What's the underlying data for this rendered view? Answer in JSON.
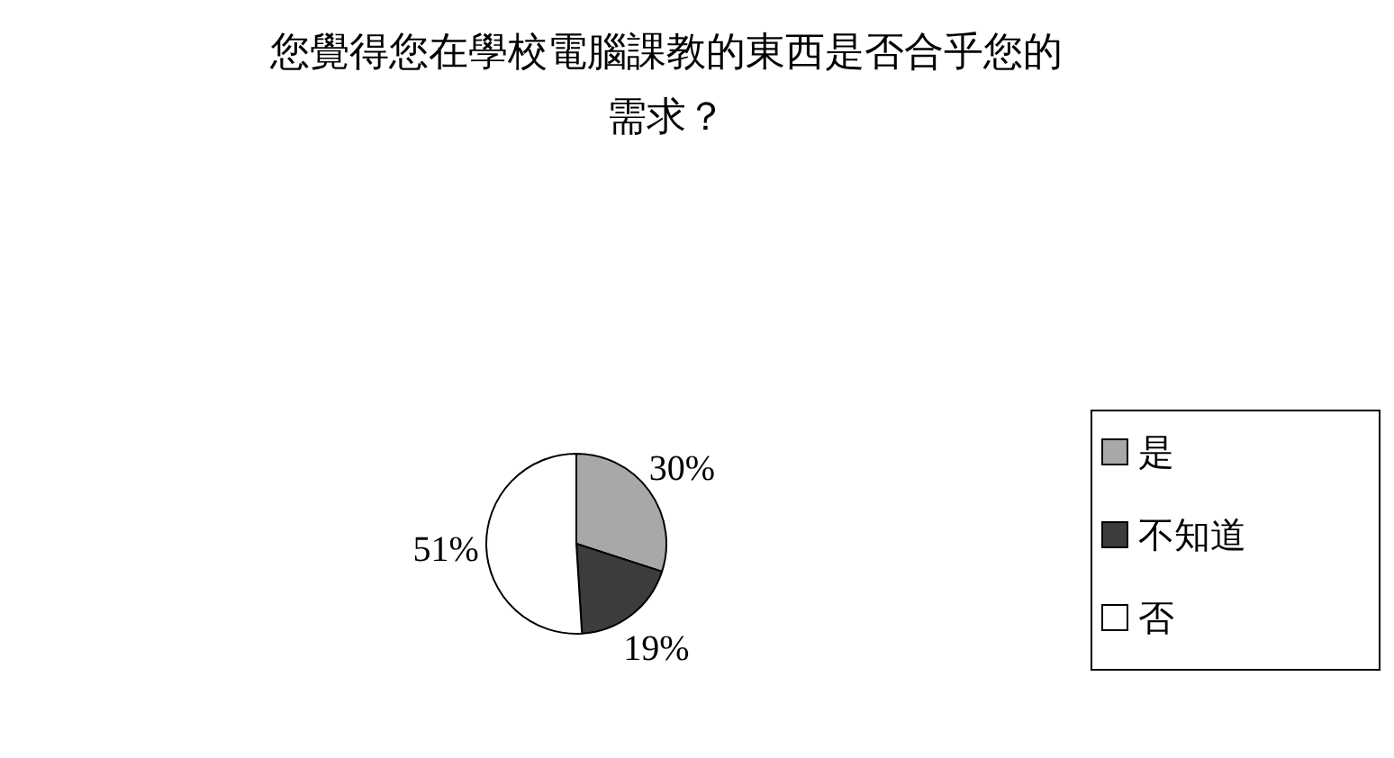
{
  "chart_data": {
    "type": "pie",
    "title": "您覺得您在學校電腦課教的東西是否合乎您的需求？",
    "categories": [
      "是",
      "不知道",
      "否"
    ],
    "values": [
      30,
      19,
      51
    ],
    "colors": [
      "#a8a8a8",
      "#3c3c3c",
      "#ffffff"
    ],
    "value_labels": [
      "30%",
      "19%",
      "51%"
    ],
    "legend": "right"
  }
}
